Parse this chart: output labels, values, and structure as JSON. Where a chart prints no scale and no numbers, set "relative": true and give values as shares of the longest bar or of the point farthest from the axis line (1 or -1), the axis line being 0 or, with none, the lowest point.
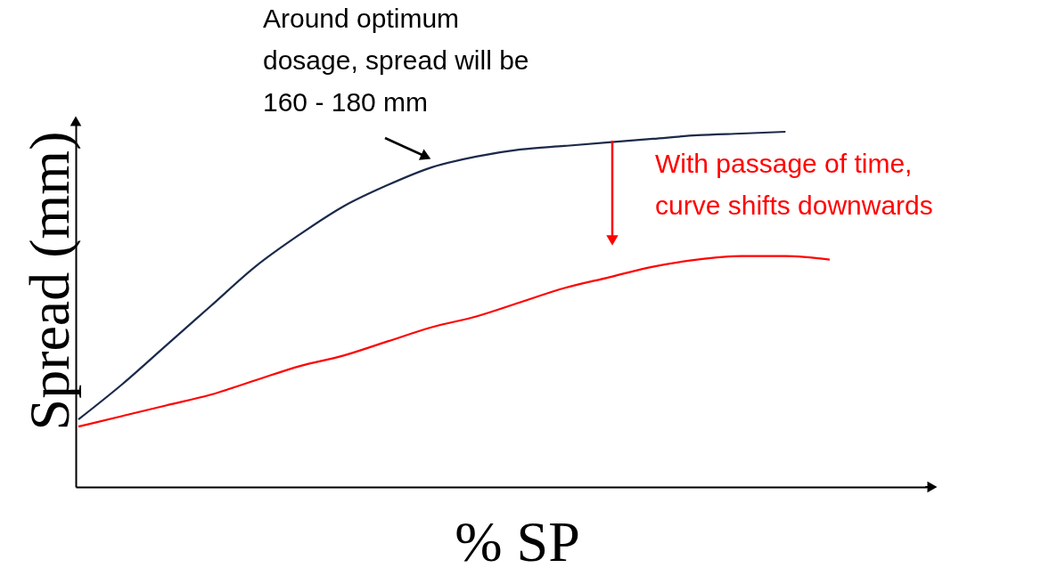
{
  "chart_data": {
    "type": "line",
    "relative": true,
    "tick_labels": false,
    "xlabel": "% SP",
    "ylabel": "Spread (mm)",
    "categories": [
      null,
      null,
      null,
      null,
      null,
      null,
      null,
      null,
      null,
      null,
      null,
      null,
      null,
      null,
      null,
      null,
      null,
      null
    ],
    "series": [
      {
        "color": "#1b2a4a",
        "values": [
          0.19,
          0.29,
          0.4,
          0.51,
          0.62,
          0.71,
          0.79,
          0.85,
          0.9,
          0.93,
          0.95,
          0.96,
          0.97,
          0.98,
          0.99,
          0.995,
          1.0,
          null
        ]
      },
      {
        "color": "#ff0000",
        "values": [
          0.17,
          0.2,
          0.23,
          0.26,
          0.3,
          0.34,
          0.37,
          0.41,
          0.45,
          0.48,
          0.52,
          0.56,
          0.59,
          0.62,
          0.64,
          0.65,
          0.65,
          0.64
        ]
      }
    ],
    "annotations": [
      "Around optimum\ndosage, spread will be\n160 - 180 mm",
      "With passage of time,\ncurve shifts downwards"
    ]
  }
}
